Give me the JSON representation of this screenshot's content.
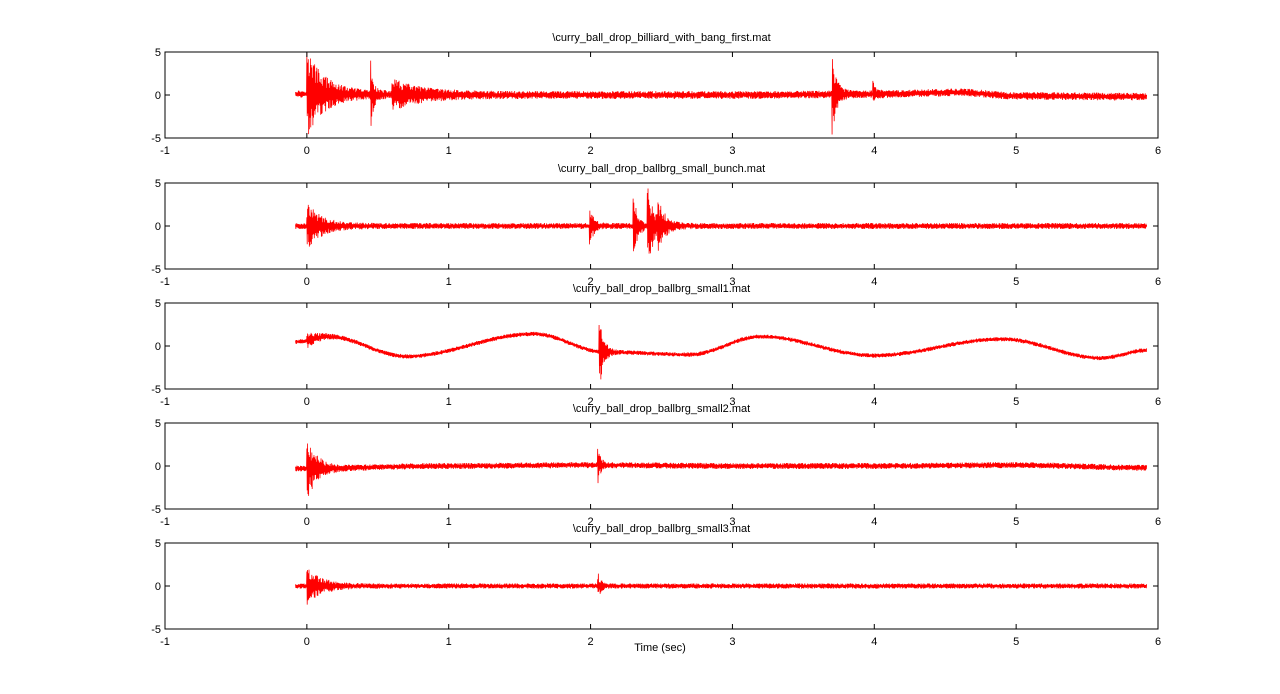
{
  "figure": {
    "xlabel": "Time (sec)",
    "line_color": "#ff0000",
    "axis_color": "#000000",
    "background": "#ffffff"
  },
  "chart_data": [
    {
      "type": "line",
      "title": "\\curry_ball_drop_billiard_with_bang_first.mat",
      "xlim": [
        -1,
        6
      ],
      "ylim": [
        -5,
        5
      ],
      "xticks": [
        "-1",
        "0",
        "1",
        "2",
        "3",
        "4",
        "5",
        "6"
      ],
      "yticks": [
        "5",
        "0",
        "-5"
      ],
      "signal": {
        "t_start": -0.08,
        "t_end": 5.92,
        "noise": 0.45,
        "baseline": [
          [
            -0.08,
            0.1
          ],
          [
            1.0,
            0.0
          ],
          [
            2.0,
            0.0
          ],
          [
            3.0,
            0.0
          ],
          [
            4.0,
            0.1
          ],
          [
            4.6,
            0.3
          ],
          [
            5.0,
            -0.1
          ],
          [
            5.92,
            -0.2
          ]
        ],
        "events": [
          {
            "t": 0.0,
            "amp": 5,
            "decay": 0.12
          },
          {
            "t": 0.45,
            "amp": 3.5,
            "decay": 0.02
          },
          {
            "t": 0.6,
            "amp": 1.5,
            "decay": 0.2
          },
          {
            "t": 3.7,
            "amp": 5,
            "decay": 0.03
          },
          {
            "t": 3.99,
            "amp": 1.5,
            "decay": 0.02
          }
        ]
      }
    },
    {
      "type": "line",
      "title": "\\curry_ball_drop_ballbrg_small_bunch.mat",
      "xlim": [
        -1,
        6
      ],
      "ylim": [
        -5,
        5
      ],
      "xticks": [
        "-1",
        "0",
        "1",
        "2",
        "3",
        "4",
        "5",
        "6"
      ],
      "yticks": [
        "5",
        "0",
        "-5"
      ],
      "signal": {
        "t_start": -0.08,
        "t_end": 5.92,
        "noise": 0.35,
        "baseline": [
          [
            -0.08,
            0.0
          ],
          [
            5.92,
            0.0
          ]
        ],
        "events": [
          {
            "t": 0.0,
            "amp": 2.5,
            "decay": 0.1
          },
          {
            "t": 1.99,
            "amp": 2.2,
            "decay": 0.03
          },
          {
            "t": 2.3,
            "amp": 3.5,
            "decay": 0.03
          },
          {
            "t": 2.4,
            "amp": 4.5,
            "decay": 0.05
          },
          {
            "t": 2.47,
            "amp": 3.0,
            "decay": 0.04
          }
        ]
      }
    },
    {
      "type": "line",
      "title": "\\curry_ball_drop_ballbrg_small1.mat",
      "xlim": [
        -1,
        6
      ],
      "ylim": [
        -5,
        5
      ],
      "xticks": [
        "-1",
        "0",
        "1",
        "2",
        "3",
        "4",
        "5",
        "6"
      ],
      "yticks": [
        "5",
        "0",
        "-5"
      ],
      "signal": {
        "t_start": -0.08,
        "t_end": 5.92,
        "noise": 0.25,
        "baseline": [
          [
            -0.08,
            0.5
          ],
          [
            0.15,
            1.1
          ],
          [
            0.7,
            -1.2
          ],
          [
            1.6,
            1.4
          ],
          [
            2.1,
            -0.7
          ],
          [
            2.7,
            -1.0
          ],
          [
            3.2,
            1.1
          ],
          [
            4.0,
            -1.1
          ],
          [
            4.9,
            0.8
          ],
          [
            5.6,
            -1.4
          ],
          [
            5.92,
            -0.5
          ]
        ],
        "events": [
          {
            "t": 0.0,
            "amp": 0.8,
            "decay": 0.08
          },
          {
            "t": 2.06,
            "amp": 4.5,
            "decay": 0.03
          }
        ]
      }
    },
    {
      "type": "line",
      "title": "\\curry_ball_drop_ballbrg_small2.mat",
      "xlim": [
        -1,
        6
      ],
      "ylim": [
        -5,
        5
      ],
      "xticks": [
        "-1",
        "0",
        "1",
        "2",
        "3",
        "4",
        "5",
        "6"
      ],
      "yticks": [
        "5",
        "0",
        "-5"
      ],
      "signal": {
        "t_start": -0.08,
        "t_end": 5.92,
        "noise": 0.35,
        "baseline": [
          [
            -0.08,
            -0.3
          ],
          [
            1.0,
            0.0
          ],
          [
            2.0,
            0.1
          ],
          [
            3.0,
            0.0
          ],
          [
            4.0,
            0.0
          ],
          [
            5.0,
            0.1
          ],
          [
            5.92,
            -0.2
          ]
        ],
        "events": [
          {
            "t": 0.0,
            "amp": 3.5,
            "decay": 0.07
          },
          {
            "t": 2.05,
            "amp": 2.0,
            "decay": 0.02
          }
        ]
      }
    },
    {
      "type": "line",
      "title": "\\curry_ball_drop_ballbrg_small3.mat",
      "xlim": [
        -1,
        6
      ],
      "ylim": [
        -5,
        5
      ],
      "xticks": [
        "-1",
        "0",
        "1",
        "2",
        "3",
        "4",
        "5",
        "6"
      ],
      "yticks": [
        "5",
        "0",
        "-5"
      ],
      "signal": {
        "t_start": -0.08,
        "t_end": 5.92,
        "noise": 0.3,
        "baseline": [
          [
            -0.08,
            0.0
          ],
          [
            5.92,
            0.0
          ]
        ],
        "events": [
          {
            "t": 0.0,
            "amp": 2.0,
            "decay": 0.1
          },
          {
            "t": 2.05,
            "amp": 1.5,
            "decay": 0.02
          }
        ]
      }
    }
  ]
}
